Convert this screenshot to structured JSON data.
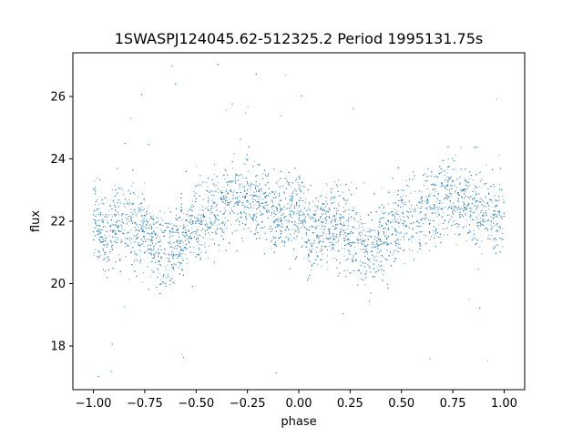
{
  "chart_data": {
    "type": "scatter",
    "title": "1SWASPJ124045.62-512325.2 Period 1995131.75s",
    "xlabel": "phase",
    "ylabel": "flux",
    "xlim": [
      -1.1,
      1.1
    ],
    "ylim": [
      16.6,
      27.4
    ],
    "x_ticks": [
      -1.0,
      -0.75,
      -0.5,
      -0.25,
      0.0,
      0.25,
      0.5,
      0.75,
      1.0
    ],
    "x_tick_labels": [
      "−1.00",
      "−0.75",
      "−0.50",
      "−0.25",
      "0.00",
      "0.25",
      "0.50",
      "0.75",
      "1.00"
    ],
    "y_ticks": [
      18,
      20,
      22,
      24,
      26
    ],
    "y_tick_labels": [
      "18",
      "20",
      "22",
      "24",
      "26"
    ],
    "grid": false,
    "legend": "none",
    "point_color": "#1f77b4",
    "phase_range": [
      -1.0,
      1.0
    ],
    "mean_profile": {
      "phase": [
        0.0,
        0.05,
        0.1,
        0.15,
        0.2,
        0.25,
        0.3,
        0.35,
        0.4,
        0.45,
        0.5,
        0.55,
        0.6,
        0.65,
        0.7,
        0.75,
        0.8,
        0.85,
        0.9,
        0.95,
        1.0
      ],
      "flux": [
        22.3,
        21.4,
        21.8,
        22.0,
        21.9,
        21.6,
        21.2,
        21.0,
        21.3,
        21.6,
        21.9,
        22.1,
        22.3,
        22.5,
        22.7,
        22.9,
        22.6,
        22.4,
        22.3,
        22.2,
        22.3
      ]
    },
    "scatter_width": 0.9
  }
}
